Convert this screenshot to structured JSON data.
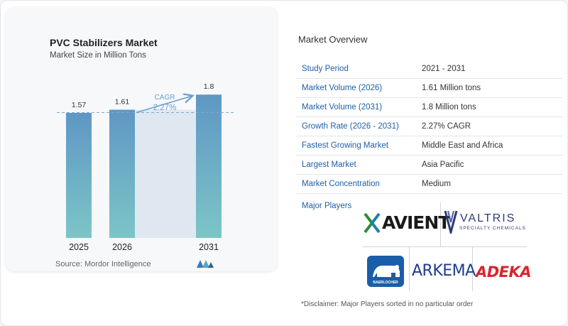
{
  "chart_title": "PVC Stabilizers Market",
  "chart_subtitle": "Market Size in Million Tons",
  "chart_data": {
    "type": "bar",
    "categories": [
      "2025",
      "2026",
      "2031"
    ],
    "values": [
      1.57,
      1.61,
      1.8
    ],
    "ylim": [
      0,
      1.9
    ],
    "grid": false,
    "annotation": {
      "label": "CAGR",
      "value": "2.27%"
    },
    "colors": {
      "bar_top": "#5f97c4",
      "bar_bottom": "#7cc5c7",
      "band": "#dfe8f1",
      "arrow": "#6a9fcf"
    }
  },
  "source": "Source:  Mordor Intelligence",
  "overview": {
    "title": "Market Overview",
    "rows": [
      {
        "key": "Study Period",
        "value": "2021 - 2031"
      },
      {
        "key": "Market Volume (2026)",
        "value": "1.61 Million tons"
      },
      {
        "key": "Market Volume (2031)",
        "value": "1.8 Million tons"
      },
      {
        "key": "Growth Rate (2026 - 2031)",
        "value": "2.27% CAGR"
      },
      {
        "key": "Fastest Growing Market",
        "value": "Middle East and Africa"
      },
      {
        "key": "Largest Market",
        "value": "Asia Pacific"
      },
      {
        "key": "Market Concentration",
        "value": "Medium"
      }
    ],
    "players_label": "Major Players",
    "logos": {
      "avient": "AVIENT",
      "valtris": "VALTRIS",
      "valtris_sub": "SPECIALTY CHEMICALS",
      "baerlocher": "BAERLOCHER",
      "arkema": "ARKEMA",
      "adeka": "ADEKA"
    },
    "disclaimer": "*Disclaimer: Major Players sorted in no particular order"
  },
  "colors": {
    "key_text": "#1f5fa8",
    "accent": "#1f5fa8"
  }
}
